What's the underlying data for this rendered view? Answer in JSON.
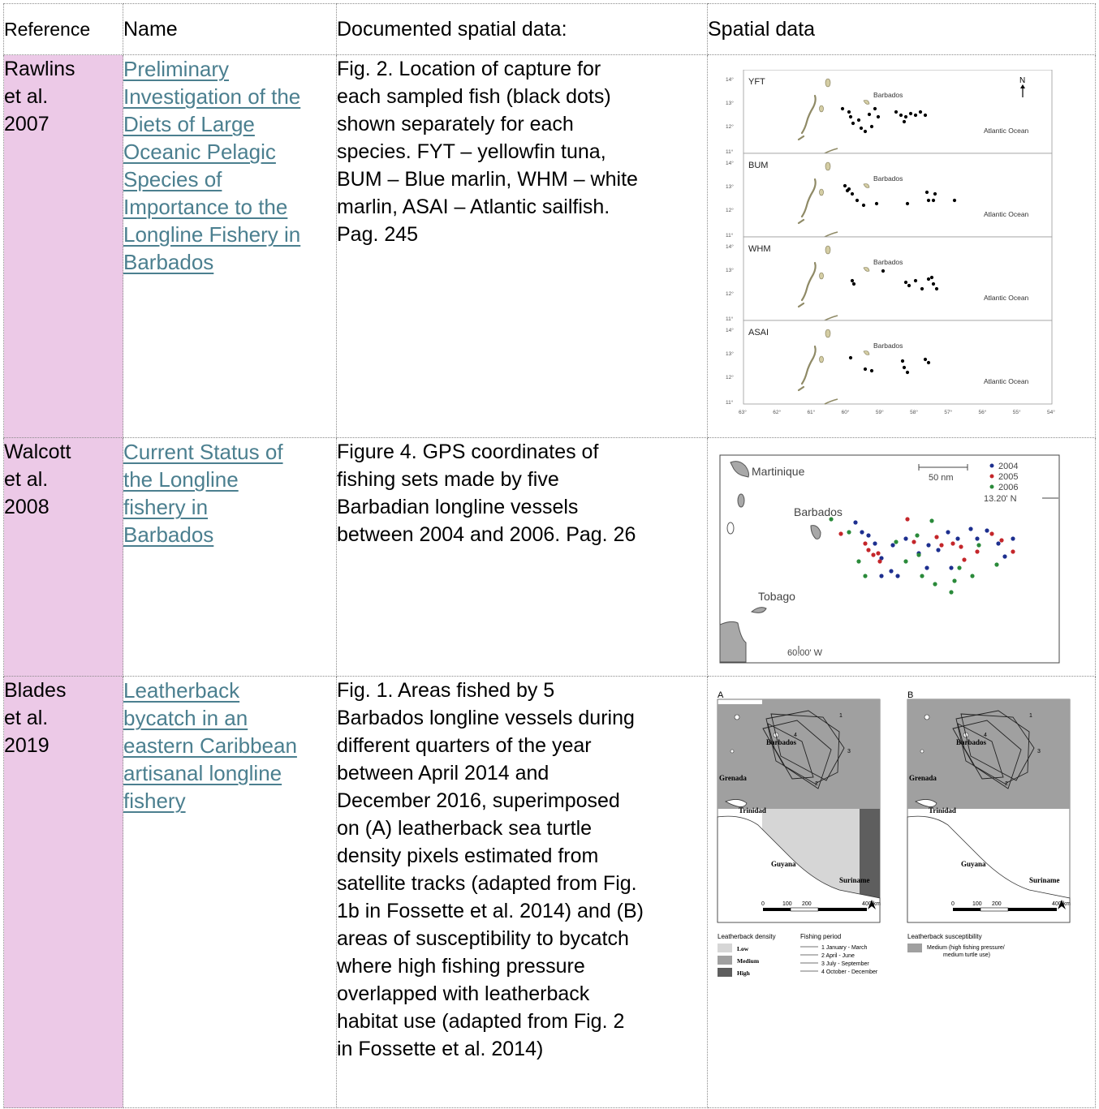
{
  "table": {
    "headers": {
      "reference": "Reference",
      "name": "Name",
      "documented": "Documented spatial data:",
      "spatial": "Spatial data"
    },
    "rows": [
      {
        "reference": [
          "Rawlins",
          "et al.",
          "2007"
        ],
        "name": [
          "Preliminary",
          "Investigation of the",
          "Diets of Large",
          "Oceanic Pelagic",
          "Species of",
          "Importance to the",
          "Longline Fishery in",
          "Barbados"
        ],
        "documented": [
          "Fig. 2. Location of capture for",
          "each sampled fish (black dots)",
          "shown separately for each",
          "species. FYT – yellowfin tuna,",
          "BUM – Blue marlin, WHM – white",
          "marlin, ASAI – Atlantic sailfish.",
          "Pag. 245"
        ]
      },
      {
        "reference": [
          "Walcott",
          "et al.",
          "2008"
        ],
        "name": [
          "Current Status of",
          "the Longline",
          "fishery in",
          "Barbados"
        ],
        "documented": [
          "Figure 4. GPS coordinates of",
          "fishing sets made by five",
          "Barbadian longline vessels",
          "between 2004 and 2006. Pag. 26"
        ]
      },
      {
        "reference": [
          "Blades",
          "et al.",
          "2019"
        ],
        "name": [
          "Leatherback",
          "bycatch in an",
          "eastern Caribbean",
          "artisanal longline",
          "fishery"
        ],
        "documented": [
          "Fig. 1. Areas fished by 5",
          "Barbados longline vessels during",
          "different quarters of the year",
          "between April 2014 and",
          "December 2016, superimposed",
          "on (A) leatherback sea turtle",
          "density pixels estimated from",
          "satellite tracks (adapted from Fig.",
          "1b in Fossette et al. 2014) and (B)",
          "areas of susceptibility to bycatch",
          "where high fishing pressure",
          "overlapped with leatherback",
          "habitat use (adapted from Fig. 2",
          "in Fossette et al. 2014)"
        ]
      }
    ]
  },
  "fig1": {
    "panels": [
      "YFT",
      "BUM",
      "WHM",
      "ASAI"
    ],
    "barbados": "Barbados",
    "ocean": "Atlantic Ocean",
    "north": "N",
    "lat_ticks": [
      "14°",
      "13°",
      "12°",
      "11°"
    ],
    "lon_ticks": [
      "63°",
      "62°",
      "61°",
      "60°",
      "59°",
      "58°",
      "57°",
      "56°",
      "55°",
      "54°"
    ]
  },
  "fig2": {
    "martinique": "Martinique",
    "barbados": "Barbados",
    "tobago": "Tobago",
    "scale": "50 nm",
    "lat": "13.20' N",
    "lon": "60.00' W",
    "legend": [
      {
        "label": "2004",
        "color": "#1d2f8f"
      },
      {
        "label": "2005",
        "color": "#c4262a"
      },
      {
        "label": "2006",
        "color": "#2a8a3a"
      }
    ]
  },
  "fig3": {
    "panelA": "A",
    "panelB": "B",
    "barbados": "Barbados",
    "grenada": "Grenada",
    "trinidad": "Trinidad",
    "guyana": "Guyana",
    "suriname": "Suriname",
    "scale_labels": [
      "0",
      "100",
      "200",
      "400 km"
    ],
    "quarters": [
      "1",
      "2",
      "3",
      "4"
    ],
    "legendA_title": "Leatherback density",
    "legendA_items": [
      "Low",
      "Medium",
      "High"
    ],
    "fishing_title": "Fishing period",
    "fishing_items": [
      "1 January - March",
      "2 April - June",
      "3 July - September",
      "4 October - December"
    ],
    "legendB_title": "Leatherback susceptibility",
    "legendB_item_line1": "Medium (high fishing pressure/",
    "legendB_item_line2": "medium turtle use)",
    "colors": {
      "low": "#d6d6d6",
      "medium": "#a0a0a0",
      "high": "#5e5e5e"
    }
  }
}
